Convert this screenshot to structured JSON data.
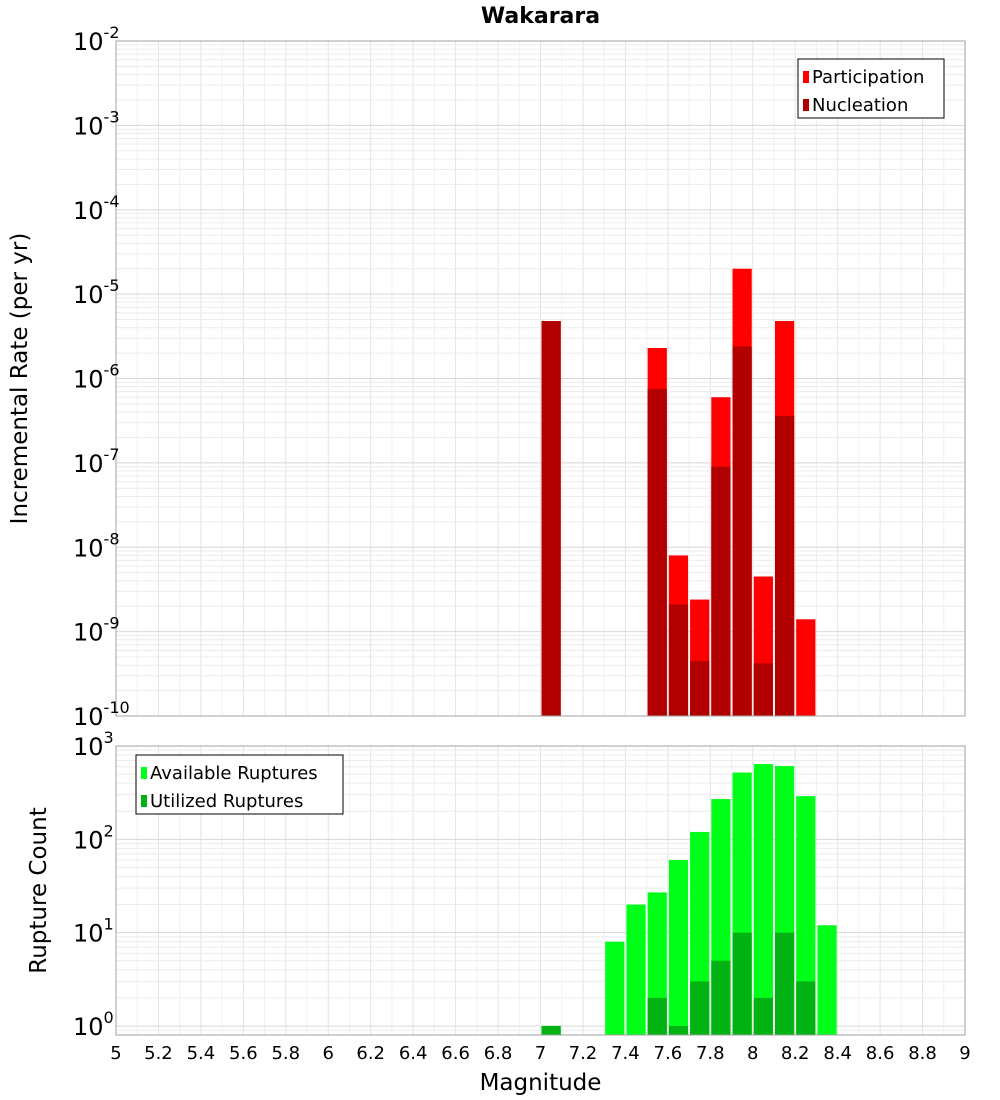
{
  "chart_data": [
    {
      "type": "bar",
      "title": "Wakarara",
      "xlabel": "Magnitude",
      "ylabel": "Incremental Rate (per yr)",
      "yscale": "log",
      "ylim": [
        1e-10,
        0.01
      ],
      "xlim": [
        5,
        9
      ],
      "bin_width": 0.1,
      "grid": true,
      "legend_position": "top-right",
      "x_tick_labels": [
        "5",
        "5.2",
        "5.4",
        "5.6",
        "5.8",
        "6",
        "6.2",
        "6.4",
        "6.6",
        "6.8",
        "7",
        "7.2",
        "7.4",
        "7.6",
        "7.8",
        "8",
        "8.2",
        "8.4",
        "8.6",
        "8.8",
        "9"
      ],
      "y_tick_exponents": [
        "-10",
        "-9",
        "-8",
        "-7",
        "-6",
        "-5",
        "-4",
        "-3",
        "-2"
      ],
      "series": [
        {
          "name": "Participation",
          "color": "#ff0000",
          "x": [
            7.05,
            7.55,
            7.65,
            7.75,
            7.85,
            7.95,
            8.05,
            8.15,
            8.25
          ],
          "values": [
            4.8e-06,
            2.3e-06,
            8e-09,
            2.4e-09,
            6e-07,
            2e-05,
            4.5e-09,
            4.8e-06,
            1.4e-09
          ]
        },
        {
          "name": "Nucleation",
          "color": "#b20000",
          "x": [
            7.05,
            7.55,
            7.65,
            7.75,
            7.85,
            7.95,
            8.05,
            8.15
          ],
          "values": [
            4.8e-06,
            7.5e-07,
            2.1e-09,
            4.5e-10,
            9e-08,
            2.4e-06,
            4.2e-10,
            3.6e-07
          ]
        }
      ]
    },
    {
      "type": "bar",
      "title": "",
      "xlabel": "Magnitude",
      "ylabel": "Rupture Count",
      "yscale": "log",
      "ylim": [
        0.8,
        1000
      ],
      "xlim": [
        5,
        9
      ],
      "bin_width": 0.1,
      "grid": true,
      "legend_position": "top-left",
      "y_tick_exponents": [
        "0",
        "1",
        "2",
        "3"
      ],
      "series": [
        {
          "name": "Available Ruptures",
          "color": "#00ff19",
          "x": [
            7.05,
            7.35,
            7.45,
            7.55,
            7.65,
            7.75,
            7.85,
            7.95,
            8.05,
            8.15,
            8.25,
            8.35
          ],
          "values": [
            1,
            8,
            20,
            27,
            60,
            120,
            270,
            520,
            640,
            610,
            290,
            12
          ]
        },
        {
          "name": "Utilized Ruptures",
          "color": "#00b212",
          "x": [
            7.05,
            7.55,
            7.65,
            7.75,
            7.85,
            7.95,
            8.05,
            8.15,
            8.25
          ],
          "values": [
            1,
            2,
            1,
            3,
            5,
            10,
            2,
            10,
            3
          ]
        }
      ]
    }
  ]
}
